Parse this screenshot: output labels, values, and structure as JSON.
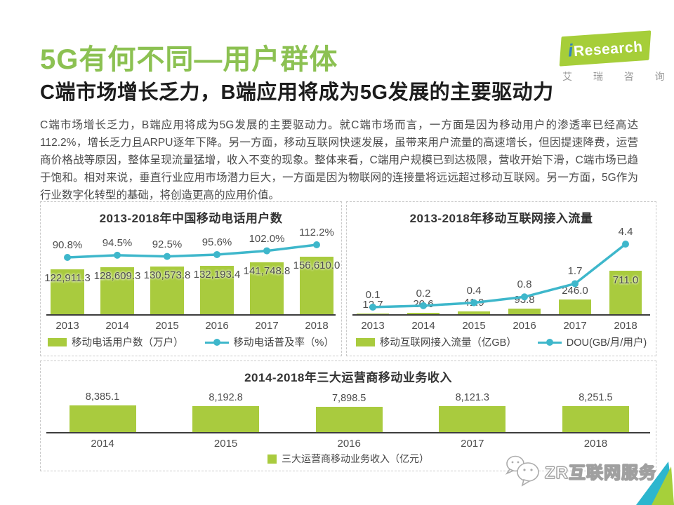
{
  "page": {
    "title": "5G有何不同—用户群体",
    "subtitle": "C端市场增长乏力，B端应用将成为5G发展的主要驱动力",
    "body": "C端市场增长乏力，B端应用将成为5G发展的主要驱动力。就C端市场而言，一方面是因为移动用户的渗透率已经高达112.2%，增长乏力且ARPU逐年下降。另一方面，移动互联网快速发展，虽带来用户流量的高速增长，但因提速降费，运营商价格战等原因，整体呈现流量猛增，收入不变的现象。整体来看，C端用户规模已到达极限，营收开始下滑，C端市场已趋于饱和。相对来说，垂直行业应用市场潜力巨大，一方面是因为物联网的连接量将远远超过移动互联网。另一方面，5G作为行业数字化转型的基础，将创造更高的应用价值。"
  },
  "logo": {
    "brand_i": "i",
    "brand_rest": "Research",
    "brand_cn": "艾 瑞 咨 询"
  },
  "watermark": {
    "text": "ZR互联网服务"
  },
  "colors": {
    "title_green": "#8cc152",
    "bar_green": "#a9cb3e",
    "line_teal": "#3eb7cb",
    "axis": "#3d3d3d",
    "corner_green": "#a6d03a",
    "corner_teal": "#2cb6ce"
  },
  "chart_data": [
    {
      "type": "bar",
      "title": "2013-2018年中国移动电话用户数",
      "categories": [
        "2013",
        "2014",
        "2015",
        "2016",
        "2017",
        "2018"
      ],
      "series": [
        {
          "name": "移动电话用户数（万户）",
          "type": "bar",
          "values": [
            122911.3,
            128609.3,
            130573.8,
            132193.4,
            141748.8,
            156610.0
          ],
          "labels": [
            "122,911.3",
            "128,609.3",
            "130,573.8",
            "132,193.4",
            "141,748.8",
            "156,610.0"
          ]
        },
        {
          "name": "移动电话普及率（%）",
          "type": "line",
          "values": [
            90.8,
            94.5,
            92.5,
            95.6,
            102.0,
            112.2
          ],
          "labels": [
            "90.8%",
            "94.5%",
            "92.5%",
            "95.6%",
            "102.0%",
            "112.2%"
          ]
        }
      ],
      "legend_position": "bottom",
      "ylim_bar": [
        0,
        156610
      ],
      "grid": false
    },
    {
      "type": "bar",
      "title": "2013-2018年移动互联网接入流量",
      "categories": [
        "2013",
        "2014",
        "2015",
        "2016",
        "2017",
        "2018"
      ],
      "series": [
        {
          "name": "移动互联网接入流量（亿GB）",
          "type": "bar",
          "values": [
            12.7,
            20.6,
            41.9,
            93.8,
            246.0,
            711.0
          ],
          "labels": [
            "12.7",
            "20.6",
            "41.9",
            "93.8",
            "246.0",
            "711.0"
          ]
        },
        {
          "name": "DOU(GB/月/用户)",
          "type": "line",
          "values": [
            0.1,
            0.2,
            0.4,
            0.8,
            1.7,
            4.4
          ],
          "labels": [
            "0.1",
            "0.2",
            "0.4",
            "0.8",
            "1.7",
            "4.4"
          ]
        }
      ],
      "legend_position": "bottom",
      "ylim_bar": [
        0,
        711
      ],
      "grid": false
    },
    {
      "type": "bar",
      "title": "2014-2018年三大运营商移动业务收入",
      "categories": [
        "2014",
        "2015",
        "2016",
        "2017",
        "2018"
      ],
      "series": [
        {
          "name": "三大运营商移动业务收入（亿元）",
          "type": "bar",
          "values": [
            8385.1,
            8192.8,
            7898.5,
            8121.3,
            8251.5
          ],
          "labels": [
            "8,385.1",
            "8,192.8",
            "7,898.5",
            "8,121.3",
            "8,251.5"
          ]
        }
      ],
      "legend_position": "bottom",
      "ylim_bar": [
        0,
        8385.1
      ],
      "grid": false
    }
  ]
}
